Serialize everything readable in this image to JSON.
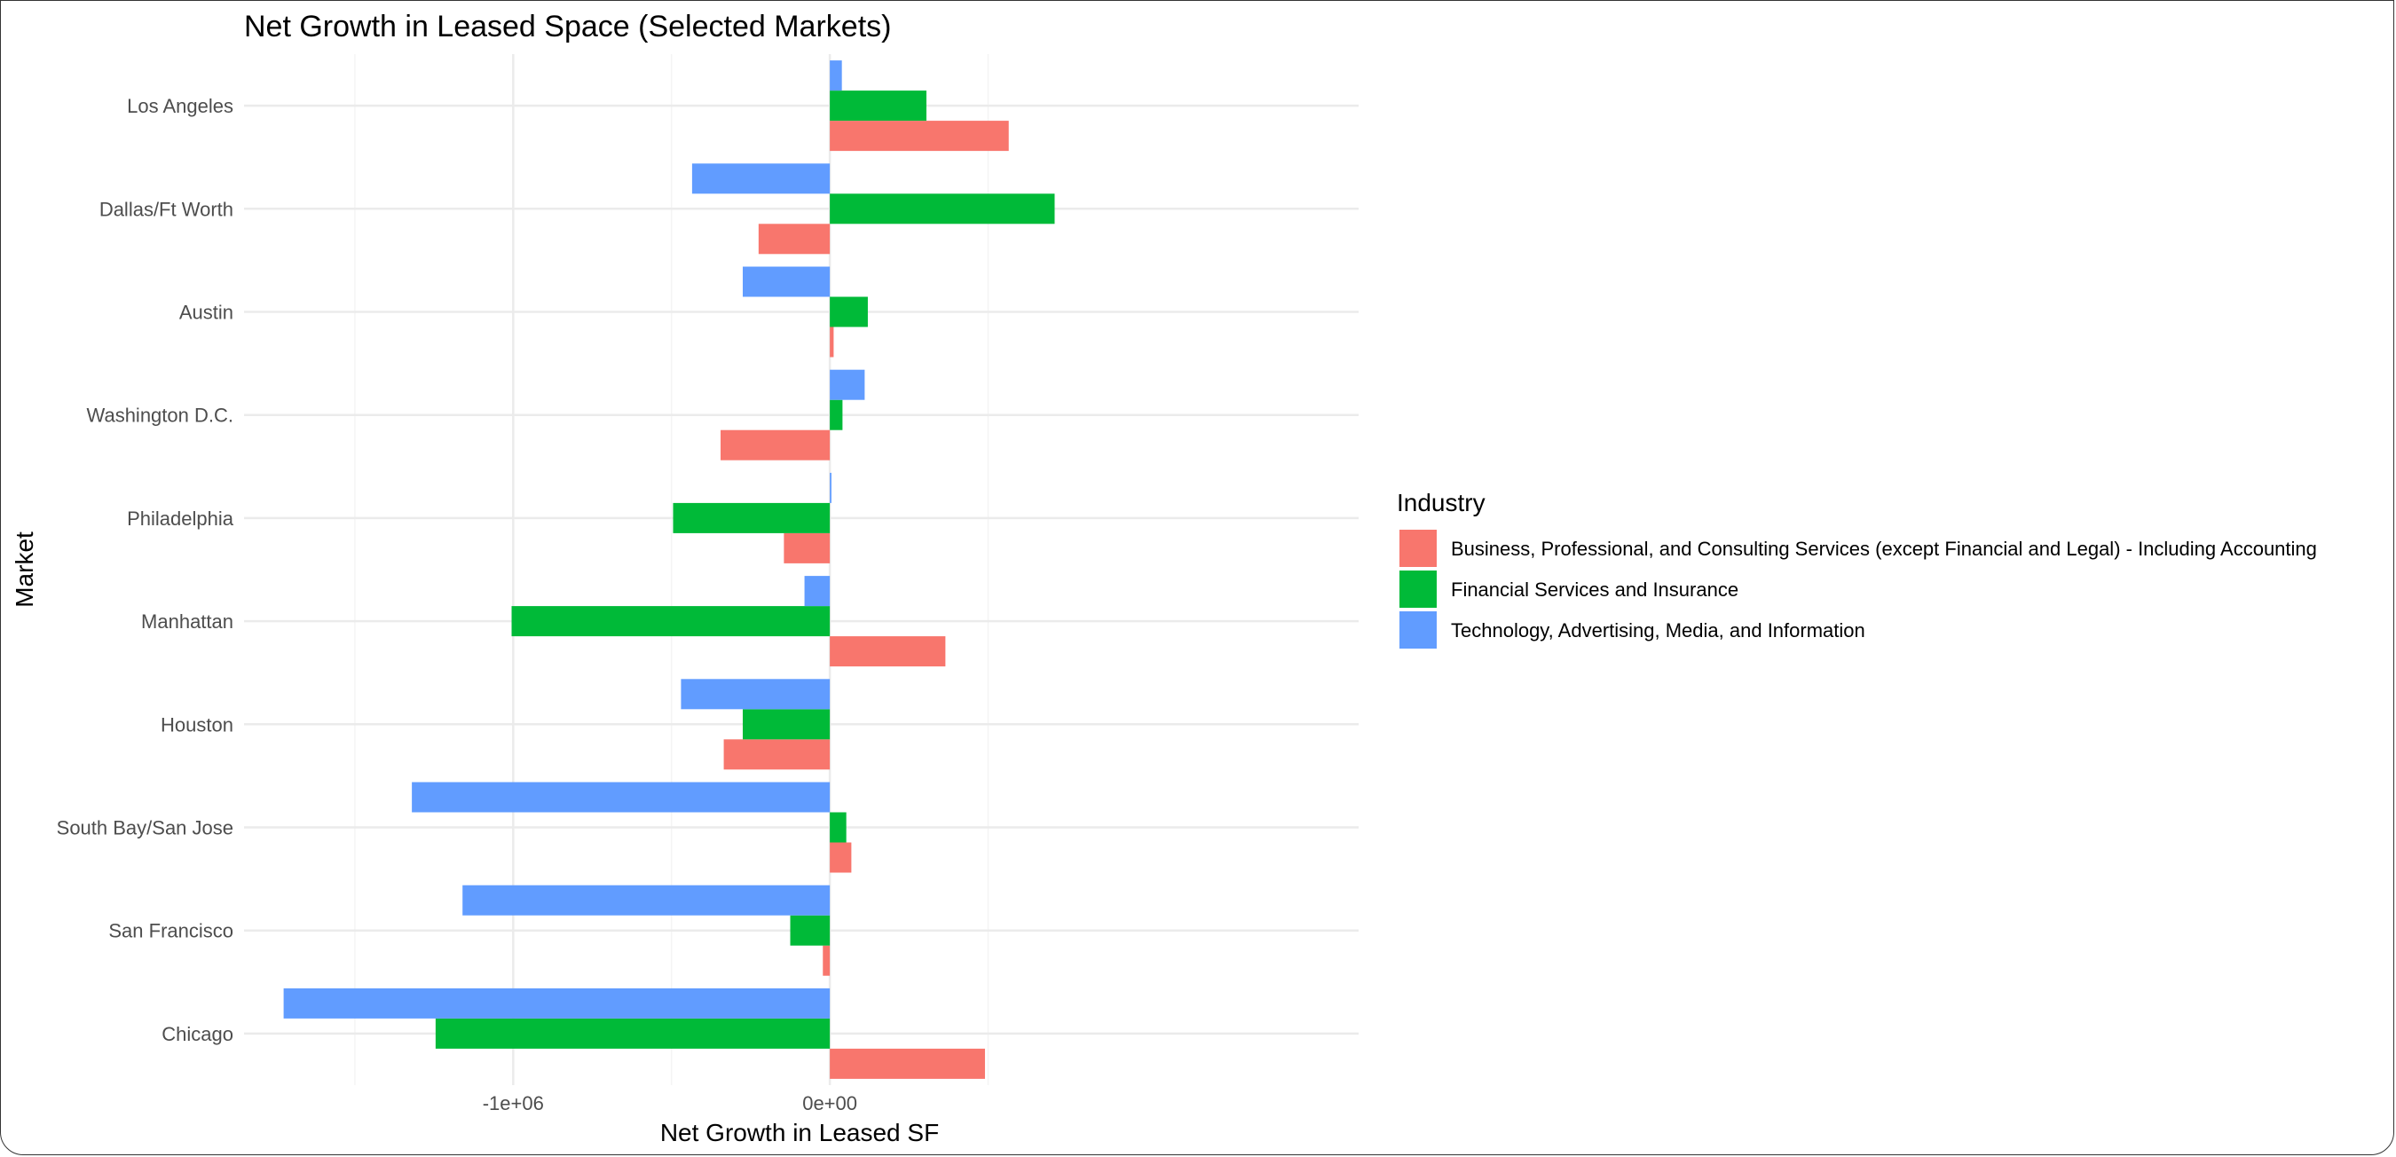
{
  "chart_data": {
    "type": "bar",
    "orientation": "horizontal",
    "title": "Net Growth in Leased Space (Selected Markets)",
    "xlabel": "Net Growth in Leased SF",
    "ylabel": "Market",
    "xlim": [
      -1850000,
      1670000
    ],
    "x_ticks": [
      {
        "value": -1000000,
        "label": "-1e+06"
      },
      {
        "value": 0,
        "label": "0e+00"
      }
    ],
    "x_minor_ticks": [
      -1500000,
      -500000,
      500000
    ],
    "grid": true,
    "legend": {
      "title": "Industry",
      "placement": "right"
    },
    "categories": [
      "Los Angeles",
      "Dallas/Ft Worth",
      "Austin",
      "Washington D.C.",
      "Philadelphia",
      "Manhattan",
      "Houston",
      "South Bay/San Jose",
      "San Francisco",
      "Chicago"
    ],
    "series": [
      {
        "name": "Business, Professional, and Consulting Services (except Financial and Legal) - Including Accounting",
        "color": "#F8766D",
        "values": [
          565000,
          -225000,
          12000,
          -345000,
          -145000,
          365000,
          -335000,
          68000,
          -22000,
          490000
        ]
      },
      {
        "name": "Financial Services and Insurance",
        "color": "#00BA38",
        "values": [
          305000,
          710000,
          120000,
          40000,
          -495000,
          -1005000,
          -275000,
          52000,
          -125000,
          -1245000
        ]
      },
      {
        "name": "Technology, Advertising, Media, and Information",
        "color": "#619CFF",
        "values": [
          38000,
          -435000,
          -275000,
          110000,
          5000,
          -80000,
          -470000,
          -1320000,
          -1160000,
          -1725000
        ]
      }
    ]
  }
}
